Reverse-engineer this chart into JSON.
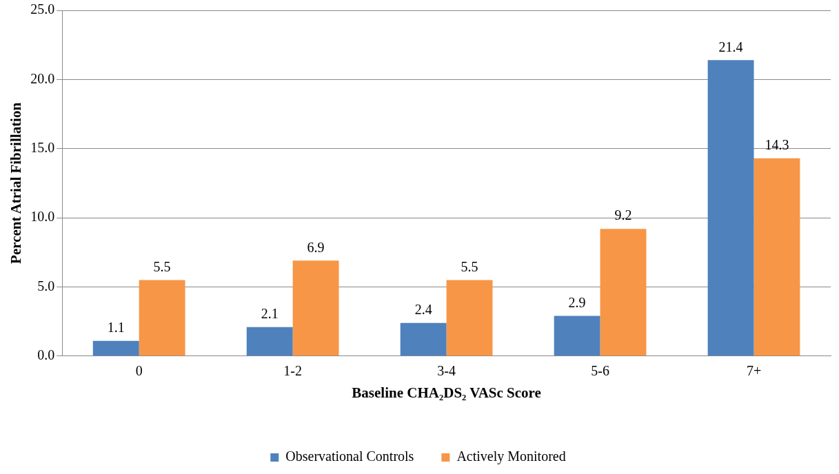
{
  "chart_data": {
    "type": "bar",
    "xlabel": "Baseline CHA₂DS₂ VASc Score",
    "ylabel": "Percent Atrial Fibrillation",
    "categories": [
      "0",
      "1-2",
      "3-4",
      "5-6",
      "7+"
    ],
    "series": [
      {
        "name": "Observational Controls",
        "color": "#4f81bd",
        "values": [
          1.1,
          2.1,
          2.4,
          2.9,
          21.4
        ]
      },
      {
        "name": "Actively Monitored",
        "color": "#f79646",
        "values": [
          5.5,
          6.9,
          5.5,
          9.2,
          14.3
        ]
      }
    ],
    "ylim": [
      0,
      25
    ],
    "yticks": [
      {
        "value": 0,
        "label": "0.0"
      },
      {
        "value": 5,
        "label": "5.0"
      },
      {
        "value": 10,
        "label": "10.0"
      },
      {
        "value": 15,
        "label": "15.0"
      },
      {
        "value": 20,
        "label": "20.0"
      },
      {
        "value": 25,
        "label": "25.0"
      }
    ],
    "grid": "y",
    "legend": "bottom",
    "data_labels": true
  }
}
